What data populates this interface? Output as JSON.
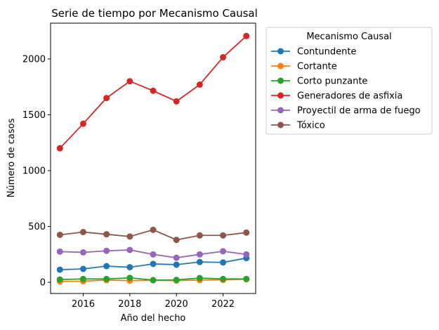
{
  "chart_data": {
    "type": "line",
    "title": "Serie de tiempo por Mecanismo Causal",
    "xlabel": "Año del hecho",
    "ylabel": "Número de casos",
    "x": [
      2015,
      2016,
      2017,
      2018,
      2019,
      2020,
      2021,
      2022,
      2023
    ],
    "xlim": [
      2014.6,
      2023.4
    ],
    "ylim": [
      -100,
      2320
    ],
    "xticks": [
      2016,
      2018,
      2020,
      2022
    ],
    "yticks": [
      0,
      500,
      1000,
      1500,
      2000
    ],
    "grid": false,
    "legend": {
      "title": "Mecanismo Causal",
      "placement": "outside-top-right"
    },
    "series": [
      {
        "name": "Contundente",
        "color": "#1f77b4",
        "values": [
          113,
          120,
          145,
          135,
          165,
          158,
          182,
          178,
          217
        ]
      },
      {
        "name": "Cortante",
        "color": "#ff7f0e",
        "values": [
          8,
          10,
          20,
          15,
          18,
          15,
          20,
          22,
          28
        ]
      },
      {
        "name": "Corto punzante",
        "color": "#2ca02c",
        "values": [
          25,
          30,
          30,
          40,
          20,
          22,
          38,
          30,
          30
        ]
      },
      {
        "name": "Generadores de asfixia",
        "color": "#d62728",
        "values": [
          1200,
          1420,
          1650,
          1800,
          1715,
          1620,
          1770,
          2015,
          2205
        ]
      },
      {
        "name": "Proyectil de arma de fuego",
        "color": "#9467bd",
        "values": [
          275,
          268,
          282,
          290,
          250,
          220,
          250,
          278,
          250
        ]
      },
      {
        "name": "Tóxico",
        "color": "#8c564b",
        "values": [
          425,
          450,
          430,
          410,
          470,
          380,
          420,
          420,
          445
        ]
      }
    ]
  }
}
